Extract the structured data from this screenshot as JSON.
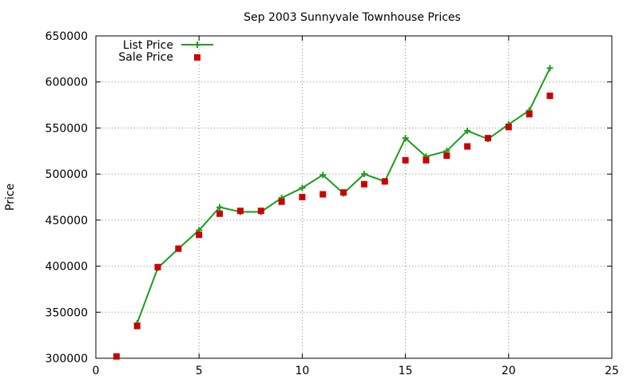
{
  "chart_data": {
    "type": "line",
    "title": "Sep 2003 Sunnyvale Townhouse Prices",
    "xlabel": "",
    "ylabel": "Price",
    "xlim": [
      0,
      25
    ],
    "ylim": [
      300000,
      650000
    ],
    "xticks": [
      0,
      5,
      10,
      15,
      20,
      25
    ],
    "yticks": [
      300000,
      350000,
      400000,
      450000,
      500000,
      550000,
      600000,
      650000
    ],
    "grid": true,
    "legend_position": "top-left",
    "series": [
      {
        "name": "List Price",
        "style": "line-with-plus-markers",
        "color": "#1a9e1a",
        "x": [
          2,
          3,
          4,
          5,
          6,
          7,
          8,
          9,
          10,
          11,
          12,
          13,
          14,
          15,
          16,
          17,
          18,
          19,
          20,
          21,
          22
        ],
        "y": [
          338000,
          398000,
          419000,
          439000,
          464000,
          459000,
          459000,
          474000,
          485000,
          499000,
          479000,
          500000,
          492000,
          539000,
          519000,
          525000,
          547000,
          538000,
          554000,
          569000,
          615000
        ]
      },
      {
        "name": "Sale Price",
        "style": "square-markers",
        "color": "#cc0000",
        "x": [
          1,
          2,
          3,
          4,
          5,
          6,
          7,
          8,
          9,
          10,
          11,
          12,
          13,
          14,
          15,
          16,
          17,
          18,
          19,
          20,
          21,
          22
        ],
        "y": [
          302000,
          335000,
          399000,
          419000,
          434000,
          457000,
          460000,
          460000,
          470000,
          475000,
          478000,
          480000,
          489000,
          492000,
          515000,
          515000,
          520000,
          530000,
          539000,
          551000,
          565000,
          585000
        ]
      }
    ]
  }
}
